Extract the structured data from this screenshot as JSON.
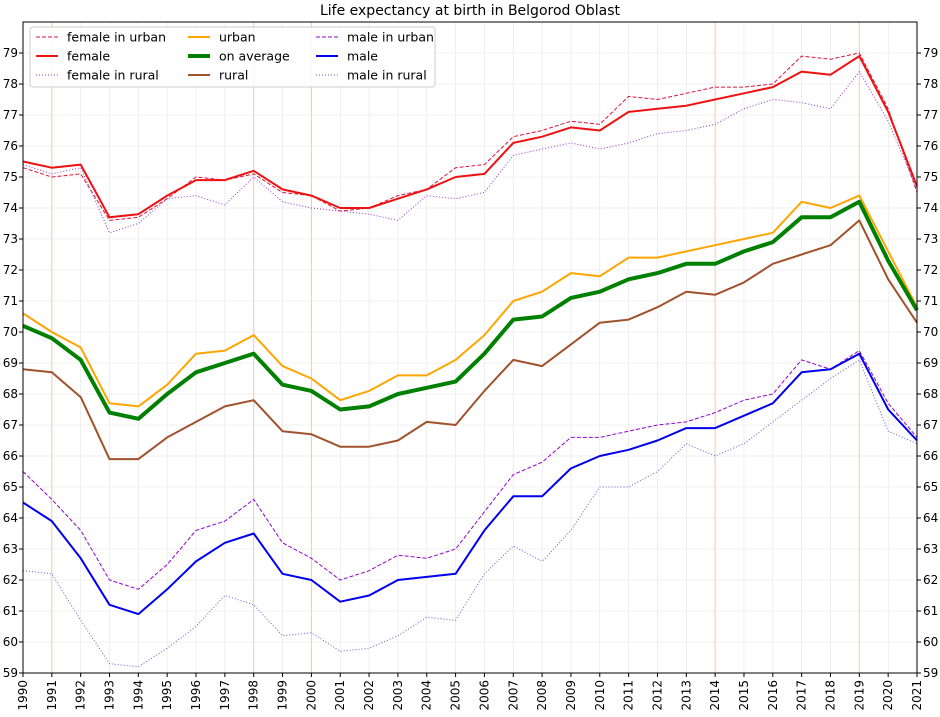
{
  "chart_data": {
    "type": "line",
    "title": "Life expectancy at birth in Belgorod Oblast",
    "xlabel": "",
    "ylabel": "",
    "xlim": [
      1990,
      2021
    ],
    "ylim": [
      59,
      80
    ],
    "x": [
      1990,
      1991,
      1992,
      1993,
      1994,
      1995,
      1996,
      1997,
      1998,
      1999,
      2000,
      2001,
      2002,
      2003,
      2004,
      2005,
      2006,
      2007,
      2008,
      2009,
      2010,
      2011,
      2012,
      2013,
      2014,
      2015,
      2016,
      2017,
      2018,
      2019,
      2020,
      2021
    ],
    "x_tick_labels": [
      "1990",
      "1991",
      "1992",
      "1993",
      "1994",
      "1995",
      "1996",
      "1997",
      "1998",
      "1999",
      "2000",
      "2001",
      "2002",
      "2003",
      "2004",
      "2005",
      "2006",
      "2007",
      "2008",
      "2009",
      "2010",
      "2011",
      "2012",
      "2013",
      "2014",
      "2015",
      "2016",
      "2017",
      "2018",
      "2019",
      "2020",
      "2021"
    ],
    "y_ticks": [
      59,
      60,
      61,
      62,
      63,
      64,
      65,
      66,
      67,
      68,
      69,
      70,
      71,
      72,
      73,
      74,
      75,
      76,
      77,
      78,
      79
    ],
    "y_tick_labels": [
      "59",
      "60",
      "61",
      "62",
      "63",
      "64",
      "65",
      "66",
      "67",
      "68",
      "69",
      "70",
      "71",
      "72",
      "73",
      "74",
      "75",
      "76",
      "77",
      "78",
      "79"
    ],
    "highlight_years": [
      1991,
      1998,
      2000,
      2014,
      2019
    ],
    "legend_position": "top-left",
    "series": [
      {
        "name": "female in urban",
        "color": "#dc143c",
        "style": "dashed",
        "width": 1,
        "values": [
          75.3,
          75.0,
          75.1,
          73.6,
          73.7,
          74.3,
          75.0,
          74.9,
          75.1,
          74.5,
          74.4,
          73.9,
          74.0,
          74.4,
          74.6,
          75.3,
          75.4,
          76.3,
          76.5,
          76.8,
          76.7,
          77.6,
          77.5,
          77.7,
          77.9,
          77.9,
          78.0,
          78.9,
          78.8,
          79.0,
          77.2,
          74.5
        ]
      },
      {
        "name": "female",
        "color": "#ee1111",
        "style": "solid",
        "width": 2,
        "values": [
          75.5,
          75.3,
          75.4,
          73.7,
          73.8,
          74.4,
          74.9,
          74.9,
          75.2,
          74.6,
          74.4,
          74.0,
          74.0,
          74.3,
          74.6,
          75.0,
          75.1,
          76.1,
          76.3,
          76.6,
          76.5,
          77.1,
          77.2,
          77.3,
          77.5,
          77.7,
          77.9,
          78.4,
          78.3,
          78.9,
          77.1,
          74.7
        ]
      },
      {
        "name": "female in rural",
        "color": "#9932cc",
        "style": "dotted",
        "width": 1,
        "values": [
          75.4,
          75.1,
          75.3,
          73.2,
          73.5,
          74.3,
          74.4,
          74.1,
          75.0,
          74.2,
          74.0,
          73.9,
          73.8,
          73.6,
          74.4,
          74.3,
          74.5,
          75.7,
          75.9,
          76.1,
          75.9,
          76.1,
          76.4,
          76.5,
          76.7,
          77.2,
          77.5,
          77.4,
          77.2,
          78.4,
          76.8,
          74.6
        ]
      },
      {
        "name": "urban",
        "color": "#ffa500",
        "style": "solid",
        "width": 2,
        "values": [
          70.6,
          70.0,
          69.5,
          67.7,
          67.6,
          68.3,
          69.3,
          69.4,
          69.9,
          68.9,
          68.5,
          67.8,
          68.1,
          68.6,
          68.6,
          69.1,
          69.9,
          71.0,
          71.3,
          71.9,
          71.8,
          72.4,
          72.4,
          72.6,
          72.8,
          73.0,
          73.2,
          74.2,
          74.0,
          74.4,
          72.6,
          70.8
        ]
      },
      {
        "name": "on average",
        "color": "#008000",
        "style": "solid",
        "width": 4,
        "values": [
          70.2,
          69.8,
          69.1,
          67.4,
          67.2,
          68.0,
          68.7,
          69.0,
          69.3,
          68.3,
          68.1,
          67.5,
          67.6,
          68.0,
          68.2,
          68.4,
          69.3,
          70.4,
          70.5,
          71.1,
          71.3,
          71.7,
          71.9,
          72.2,
          72.2,
          72.6,
          72.9,
          73.7,
          73.7,
          74.2,
          72.3,
          70.7
        ]
      },
      {
        "name": "rural",
        "color": "#a0522d",
        "style": "solid",
        "width": 2,
        "values": [
          68.8,
          68.7,
          67.9,
          65.9,
          65.9,
          66.6,
          67.1,
          67.6,
          67.8,
          66.8,
          66.7,
          66.3,
          66.3,
          66.5,
          67.1,
          67.0,
          68.1,
          69.1,
          68.9,
          69.6,
          70.3,
          70.4,
          70.8,
          71.3,
          71.2,
          71.6,
          72.2,
          72.5,
          72.8,
          73.6,
          71.7,
          70.3
        ]
      },
      {
        "name": "male in urban",
        "color": "#9400d3",
        "style": "dashed",
        "width": 1,
        "values": [
          65.5,
          64.6,
          63.6,
          62.0,
          61.7,
          62.5,
          63.6,
          63.9,
          64.6,
          63.2,
          62.7,
          62.0,
          62.3,
          62.8,
          62.7,
          63.0,
          64.2,
          65.4,
          65.8,
          66.6,
          66.6,
          66.8,
          67.0,
          67.1,
          67.4,
          67.8,
          68.0,
          69.1,
          68.8,
          69.4,
          67.7,
          66.6
        ]
      },
      {
        "name": "male",
        "color": "#0000ee",
        "style": "solid",
        "width": 2,
        "values": [
          64.5,
          63.9,
          62.7,
          61.2,
          60.9,
          61.7,
          62.6,
          63.2,
          63.5,
          62.2,
          62.0,
          61.3,
          61.5,
          62.0,
          62.1,
          62.2,
          63.6,
          64.7,
          64.7,
          65.6,
          66.0,
          66.2,
          66.5,
          66.9,
          66.9,
          67.3,
          67.7,
          68.7,
          68.8,
          69.3,
          67.5,
          66.5
        ]
      },
      {
        "name": "male in rural",
        "color": "#6a5acd",
        "style": "dotted",
        "width": 1,
        "values": [
          62.3,
          62.2,
          60.7,
          59.3,
          59.2,
          59.8,
          60.5,
          61.5,
          61.2,
          60.2,
          60.3,
          59.7,
          59.8,
          60.2,
          60.8,
          60.7,
          62.2,
          63.1,
          62.6,
          63.6,
          65.0,
          65.0,
          65.5,
          66.4,
          66.0,
          66.4,
          67.1,
          67.8,
          68.5,
          69.1,
          66.8,
          66.4
        ]
      }
    ]
  }
}
